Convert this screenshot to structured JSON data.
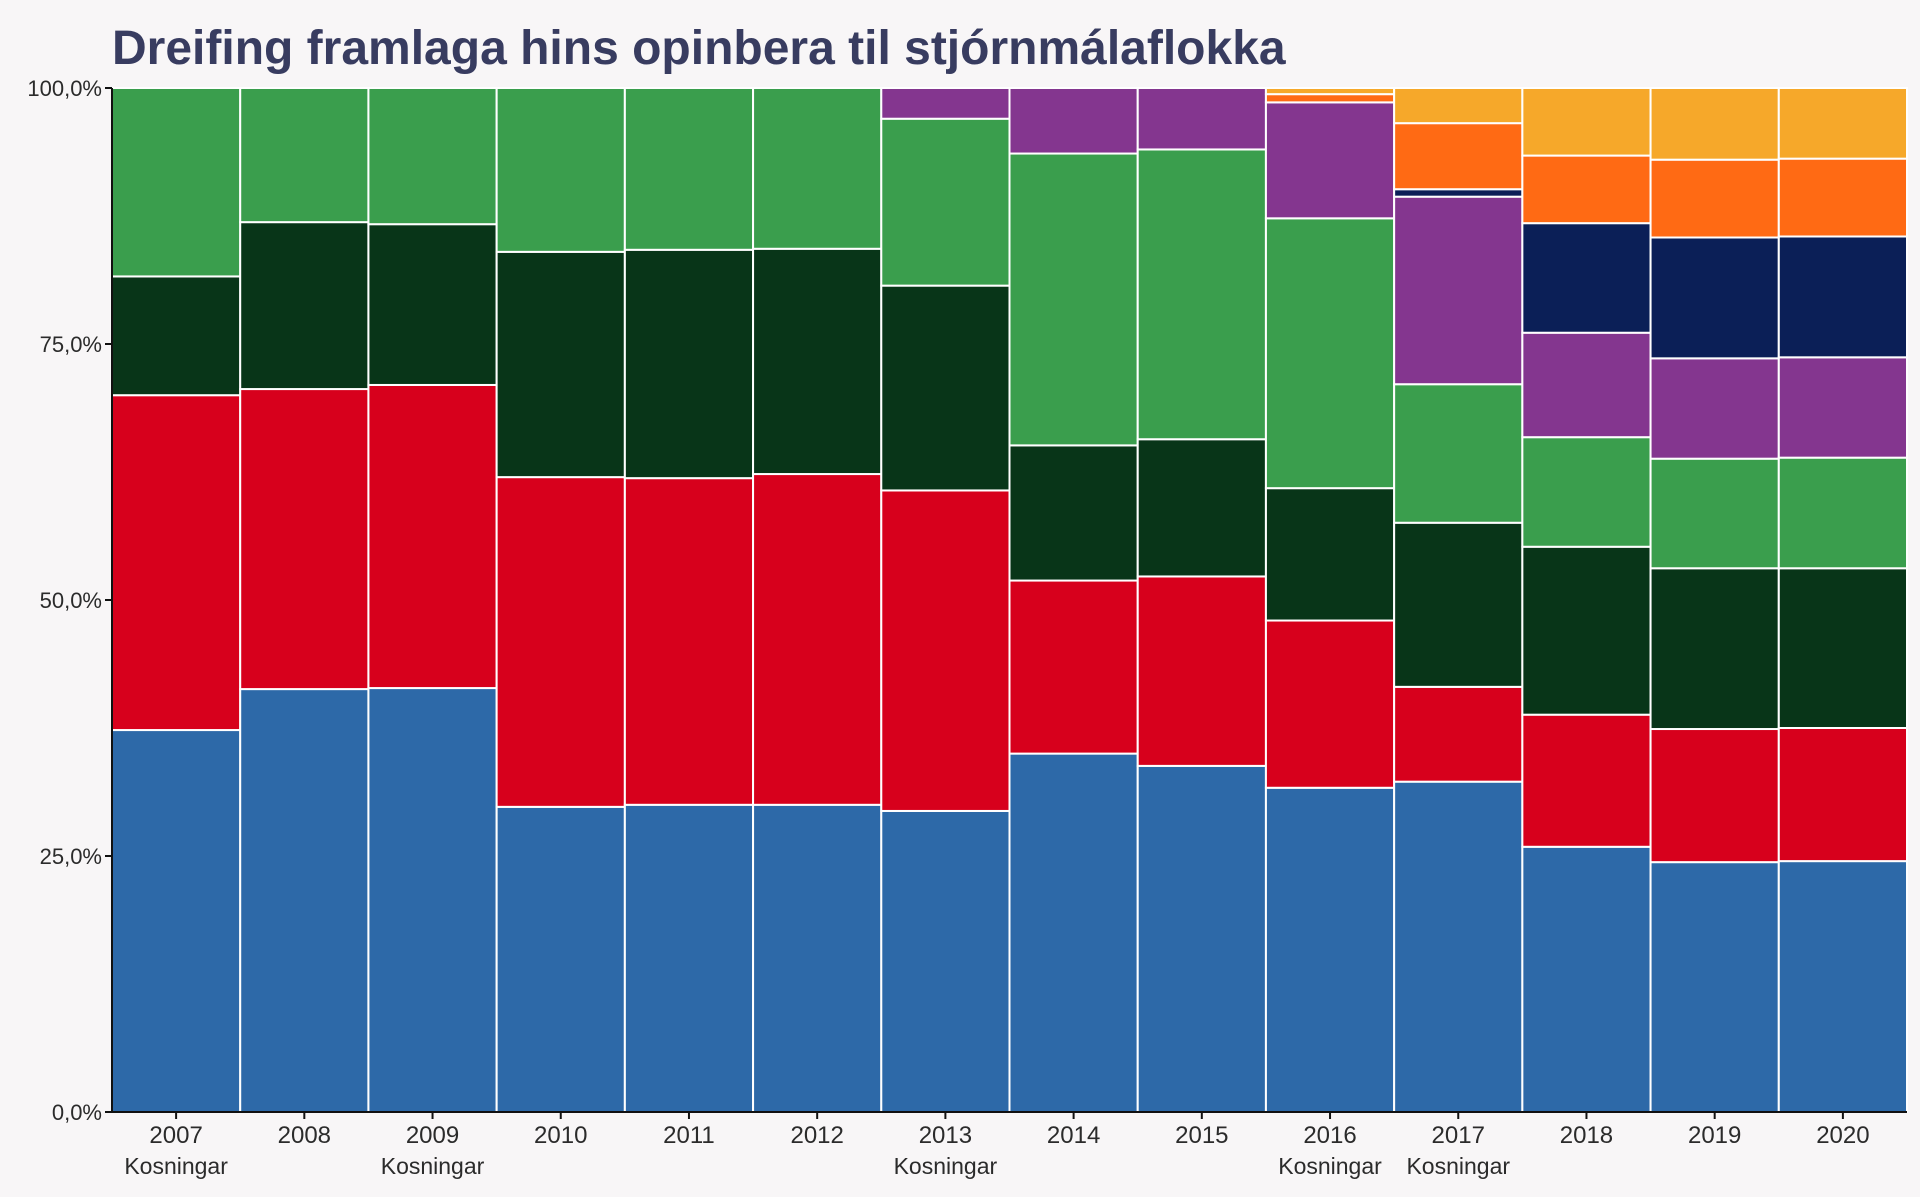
{
  "chart_data": {
    "type": "bar",
    "stacked": true,
    "title": "Dreifing framlaga hins opinbera til stjórnmálaflokka",
    "xlabel": "",
    "ylabel": "",
    "ylim": [
      0,
      100
    ],
    "y_ticks": [
      "0,0%",
      "25,0%",
      "50,0%",
      "75,0%",
      "100,0%"
    ],
    "y_tick_values": [
      0,
      25,
      50,
      75,
      100
    ],
    "grid": false,
    "legend": "none",
    "categories": [
      "2007",
      "2008",
      "2009",
      "2010",
      "2011",
      "2012",
      "2013",
      "2014",
      "2015",
      "2016",
      "2017",
      "2018",
      "2019",
      "2020"
    ],
    "category_notes": [
      "Kosningar",
      "",
      "Kosningar",
      "",
      "",
      "",
      "Kosningar",
      "",
      "",
      "Kosningar",
      "Kosningar",
      "",
      "",
      ""
    ],
    "series": [
      {
        "color": "#2d69a8",
        "values": [
          37.3,
          41.3,
          41.4,
          29.8,
          30.0,
          30.0,
          29.4,
          35.0,
          33.8,
          31.6,
          31.0,
          25.9,
          24.4,
          24.5
        ]
      },
      {
        "color": "#d7001c",
        "values": [
          32.7,
          29.3,
          29.6,
          32.2,
          31.9,
          32.3,
          31.3,
          16.9,
          18.5,
          16.3,
          8.9,
          12.9,
          13.0,
          13.0
        ]
      },
      {
        "color": "#083518",
        "values": [
          11.6,
          16.3,
          15.7,
          22.0,
          22.3,
          22.0,
          20.0,
          13.2,
          13.4,
          12.9,
          15.4,
          16.4,
          15.7,
          15.6
        ]
      },
      {
        "color": "#3a9e4d",
        "values": [
          18.4,
          13.1,
          13.3,
          16.0,
          15.8,
          15.7,
          16.3,
          28.5,
          28.3,
          26.3,
          13.0,
          10.7,
          10.7,
          10.8
        ]
      },
      {
        "color": "#84368f",
        "values": [
          0,
          0,
          0,
          0,
          0,
          0,
          3.0,
          6.4,
          6.0,
          11.3,
          17.6,
          10.2,
          9.8,
          9.8
        ]
      },
      {
        "color": "#0b1f57",
        "values": [
          0,
          0,
          0,
          0,
          0,
          0,
          0,
          0,
          0,
          0,
          0.7,
          10.7,
          11.8,
          11.8
        ]
      },
      {
        "color": "#ff6a14",
        "values": [
          0,
          0,
          0,
          0,
          0,
          0,
          0,
          0,
          0,
          0.8,
          6.2,
          6.6,
          7.6,
          7.6
        ]
      },
      {
        "color": "#f6a82a",
        "values": [
          0,
          0,
          0,
          0,
          0,
          0,
          0,
          0,
          0,
          0.6,
          3.3,
          6.6,
          7.0,
          6.9
        ]
      }
    ]
  }
}
